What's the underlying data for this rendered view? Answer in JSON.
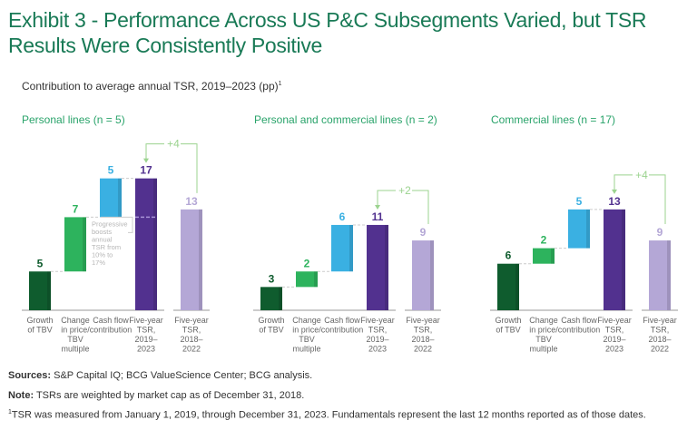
{
  "title": "Exhibit 3 - Performance Across US P&C Subsegments Varied, but TSR Results Were Consistently Positive",
  "subtitle": "Contribution to average annual TSR, 2019–2023 (pp)",
  "subtitle_footnote": "1",
  "colors": {
    "title": "#197a56",
    "panel_title": "#29a36a",
    "growth_tbv": "#0f5c2e",
    "change_price": "#2db35d",
    "cash_flow": "#3ab0e2",
    "tsr_2019_2023": "#52318f",
    "tsr_2018_2022": "#b4a7d6",
    "delta": "#9bd38f"
  },
  "chart_data": [
    {
      "type": "bar",
      "subtype": "waterfall",
      "title": "Personal lines (n = 5)",
      "categories": [
        "Growth of TBV",
        "Change in price/ TBV multiple",
        "Cash flow contribution",
        "Five-year TSR, 2019–2023",
        "Five-year TSR, 2018–2022"
      ],
      "values": [
        5,
        7,
        5,
        17,
        13
      ],
      "bar_roles": [
        "increment",
        "increment",
        "increment",
        "total",
        "comparison"
      ],
      "delta_label": "+4",
      "annotation": "Progressive boosts annual TSR from 10% to 17%",
      "ylim": [
        0,
        17
      ]
    },
    {
      "type": "bar",
      "subtype": "waterfall",
      "title": "Personal and commercial lines (n = 2)",
      "categories": [
        "Growth of TBV",
        "Change in price/ TBV multiple",
        "Cash flow contribution",
        "Five-year TSR, 2019–2023",
        "Five-year TSR, 2018–2022"
      ],
      "values": [
        3,
        2,
        6,
        11,
        9
      ],
      "bar_roles": [
        "increment",
        "increment",
        "increment",
        "total",
        "comparison"
      ],
      "delta_label": "+2",
      "ylim": [
        0,
        17
      ]
    },
    {
      "type": "bar",
      "subtype": "waterfall",
      "title": "Commercial lines (n = 17)",
      "categories": [
        "Growth of TBV",
        "Change in price/ TBV multiple",
        "Cash flow contribution",
        "Five-year TSR, 2019–2023",
        "Five-year TSR, 2018–2022"
      ],
      "values": [
        6,
        2,
        5,
        13,
        9
      ],
      "bar_roles": [
        "increment",
        "increment",
        "increment",
        "total",
        "comparison"
      ],
      "delta_label": "+4",
      "ylim": [
        0,
        17
      ]
    }
  ],
  "footer": {
    "sources_label": "Sources:",
    "sources_text": " S&P Capital IQ; BCG ValueScience Center; BCG analysis.",
    "note_label": "Note:",
    "note_text": " TSRs are weighted by market cap as of December 31, 2018.",
    "footnote_marker": "1",
    "footnote_text": "TSR was measured from January 1, 2019, through December 31, 2023. Fundamentals represent the last 12 months reported as of those dates."
  }
}
